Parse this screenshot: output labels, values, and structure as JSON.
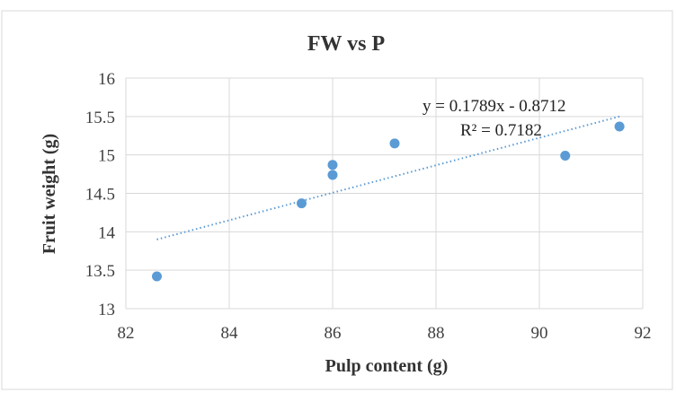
{
  "chart_data": {
    "type": "scatter",
    "title": "FW vs P",
    "xlabel": "Pulp content (g)",
    "ylabel": "Fruit weight (g)",
    "xlim": [
      82,
      92
    ],
    "ylim": [
      13,
      16
    ],
    "x_ticks": [
      "82",
      "84",
      "86",
      "88",
      "90",
      "92"
    ],
    "y_ticks": [
      "13",
      "13.5",
      "14",
      "14.5",
      "15",
      "15.5",
      "16"
    ],
    "grid": true,
    "series": [
      {
        "points": [
          {
            "x": 82.6,
            "y": 13.42
          },
          {
            "x": 85.4,
            "y": 14.37
          },
          {
            "x": 86.0,
            "y": 14.74
          },
          {
            "x": 86.0,
            "y": 14.87
          },
          {
            "x": 87.2,
            "y": 15.15
          },
          {
            "x": 90.5,
            "y": 14.99
          },
          {
            "x": 91.55,
            "y": 15.37
          }
        ],
        "color": "#5b9bd5"
      }
    ],
    "trendline": {
      "type": "linear",
      "x_range": [
        82.6,
        91.55
      ],
      "y_range": [
        13.9,
        15.5
      ],
      "equation": "y = 0.1789x  - 0.8712",
      "r_squared": "R² = 0.7182",
      "color": "#5b9bd5",
      "style": "dotted"
    }
  }
}
